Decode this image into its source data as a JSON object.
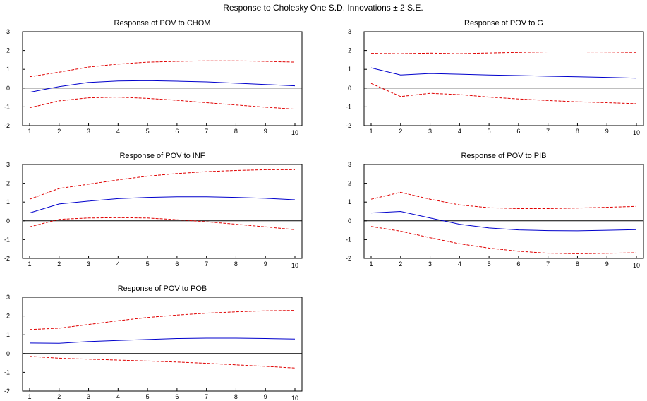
{
  "title": "Response to Cholesky One S.D. Innovations ± 2 S.E.",
  "colors": {
    "response": "#0000cc",
    "bands": "#e00000",
    "axis": "#000000"
  },
  "chart_data": [
    {
      "type": "line",
      "title": "Response of POV to CHOM",
      "x": [
        1,
        2,
        3,
        4,
        5,
        6,
        7,
        8,
        9,
        10
      ],
      "ylim": [
        -2,
        3
      ],
      "yticks": [
        -2,
        -1,
        0,
        1,
        2,
        3
      ],
      "grid": false,
      "zero_line": true,
      "series": [
        {
          "role": "response",
          "style": "solid",
          "values": [
            -0.22,
            0.08,
            0.3,
            0.38,
            0.4,
            0.37,
            0.33,
            0.26,
            0.19,
            0.12
          ]
        },
        {
          "role": "upper",
          "style": "dashed",
          "values": [
            0.6,
            0.85,
            1.12,
            1.28,
            1.38,
            1.42,
            1.45,
            1.45,
            1.42,
            1.38
          ]
        },
        {
          "role": "lower",
          "style": "dashed",
          "values": [
            -1.05,
            -0.68,
            -0.52,
            -0.48,
            -0.55,
            -0.65,
            -0.78,
            -0.9,
            -1.02,
            -1.12
          ]
        }
      ]
    },
    {
      "type": "line",
      "title": "Response of POV to G",
      "x": [
        1,
        2,
        3,
        4,
        5,
        6,
        7,
        8,
        9,
        10
      ],
      "ylim": [
        -2,
        3
      ],
      "yticks": [
        -2,
        -1,
        0,
        1,
        2,
        3
      ],
      "grid": false,
      "zero_line": true,
      "series": [
        {
          "role": "response",
          "style": "solid",
          "values": [
            1.08,
            0.7,
            0.78,
            0.74,
            0.7,
            0.67,
            0.63,
            0.6,
            0.57,
            0.53
          ]
        },
        {
          "role": "upper",
          "style": "dashed",
          "values": [
            1.85,
            1.83,
            1.86,
            1.83,
            1.87,
            1.9,
            1.93,
            1.93,
            1.92,
            1.9
          ]
        },
        {
          "role": "lower",
          "style": "dashed",
          "values": [
            0.25,
            -0.45,
            -0.28,
            -0.35,
            -0.48,
            -0.58,
            -0.66,
            -0.73,
            -0.78,
            -0.83
          ]
        }
      ]
    },
    {
      "type": "line",
      "title": "Response of POV to INF",
      "x": [
        1,
        2,
        3,
        4,
        5,
        6,
        7,
        8,
        9,
        10
      ],
      "ylim": [
        -2,
        3
      ],
      "yticks": [
        -2,
        -1,
        0,
        1,
        2,
        3
      ],
      "grid": false,
      "zero_line": true,
      "series": [
        {
          "role": "response",
          "style": "solid",
          "values": [
            0.42,
            0.9,
            1.05,
            1.18,
            1.25,
            1.28,
            1.28,
            1.25,
            1.2,
            1.12
          ]
        },
        {
          "role": "upper",
          "style": "dashed",
          "values": [
            1.15,
            1.72,
            1.95,
            2.18,
            2.38,
            2.52,
            2.62,
            2.68,
            2.72,
            2.72
          ]
        },
        {
          "role": "lower",
          "style": "dashed",
          "values": [
            -0.32,
            0.08,
            0.15,
            0.17,
            0.15,
            0.06,
            -0.05,
            -0.18,
            -0.32,
            -0.47
          ]
        }
      ]
    },
    {
      "type": "line",
      "title": "Response of POV to PIB",
      "x": [
        1,
        2,
        3,
        4,
        5,
        6,
        7,
        8,
        9,
        10
      ],
      "ylim": [
        -2,
        3
      ],
      "yticks": [
        -2,
        -1,
        0,
        1,
        2,
        3
      ],
      "grid": false,
      "zero_line": true,
      "series": [
        {
          "role": "response",
          "style": "solid",
          "values": [
            0.42,
            0.5,
            0.15,
            -0.18,
            -0.38,
            -0.48,
            -0.52,
            -0.53,
            -0.5,
            -0.47
          ]
        },
        {
          "role": "upper",
          "style": "dashed",
          "values": [
            1.15,
            1.52,
            1.15,
            0.85,
            0.7,
            0.65,
            0.65,
            0.68,
            0.72,
            0.77
          ]
        },
        {
          "role": "lower",
          "style": "dashed",
          "values": [
            -0.3,
            -0.55,
            -0.9,
            -1.22,
            -1.45,
            -1.62,
            -1.72,
            -1.75,
            -1.73,
            -1.7
          ]
        }
      ]
    },
    {
      "type": "line",
      "title": "Response of POV to POB",
      "x": [
        1,
        2,
        3,
        4,
        5,
        6,
        7,
        8,
        9,
        10
      ],
      "ylim": [
        -2,
        3
      ],
      "yticks": [
        -2,
        -1,
        0,
        1,
        2,
        3
      ],
      "grid": false,
      "zero_line": true,
      "series": [
        {
          "role": "response",
          "style": "solid",
          "values": [
            0.56,
            0.55,
            0.64,
            0.7,
            0.75,
            0.8,
            0.82,
            0.82,
            0.8,
            0.77
          ]
        },
        {
          "role": "upper",
          "style": "dashed",
          "values": [
            1.28,
            1.35,
            1.55,
            1.75,
            1.92,
            2.05,
            2.15,
            2.22,
            2.28,
            2.3
          ]
        },
        {
          "role": "lower",
          "style": "dashed",
          "values": [
            -0.15,
            -0.25,
            -0.3,
            -0.35,
            -0.4,
            -0.45,
            -0.52,
            -0.6,
            -0.68,
            -0.77
          ]
        }
      ]
    }
  ]
}
